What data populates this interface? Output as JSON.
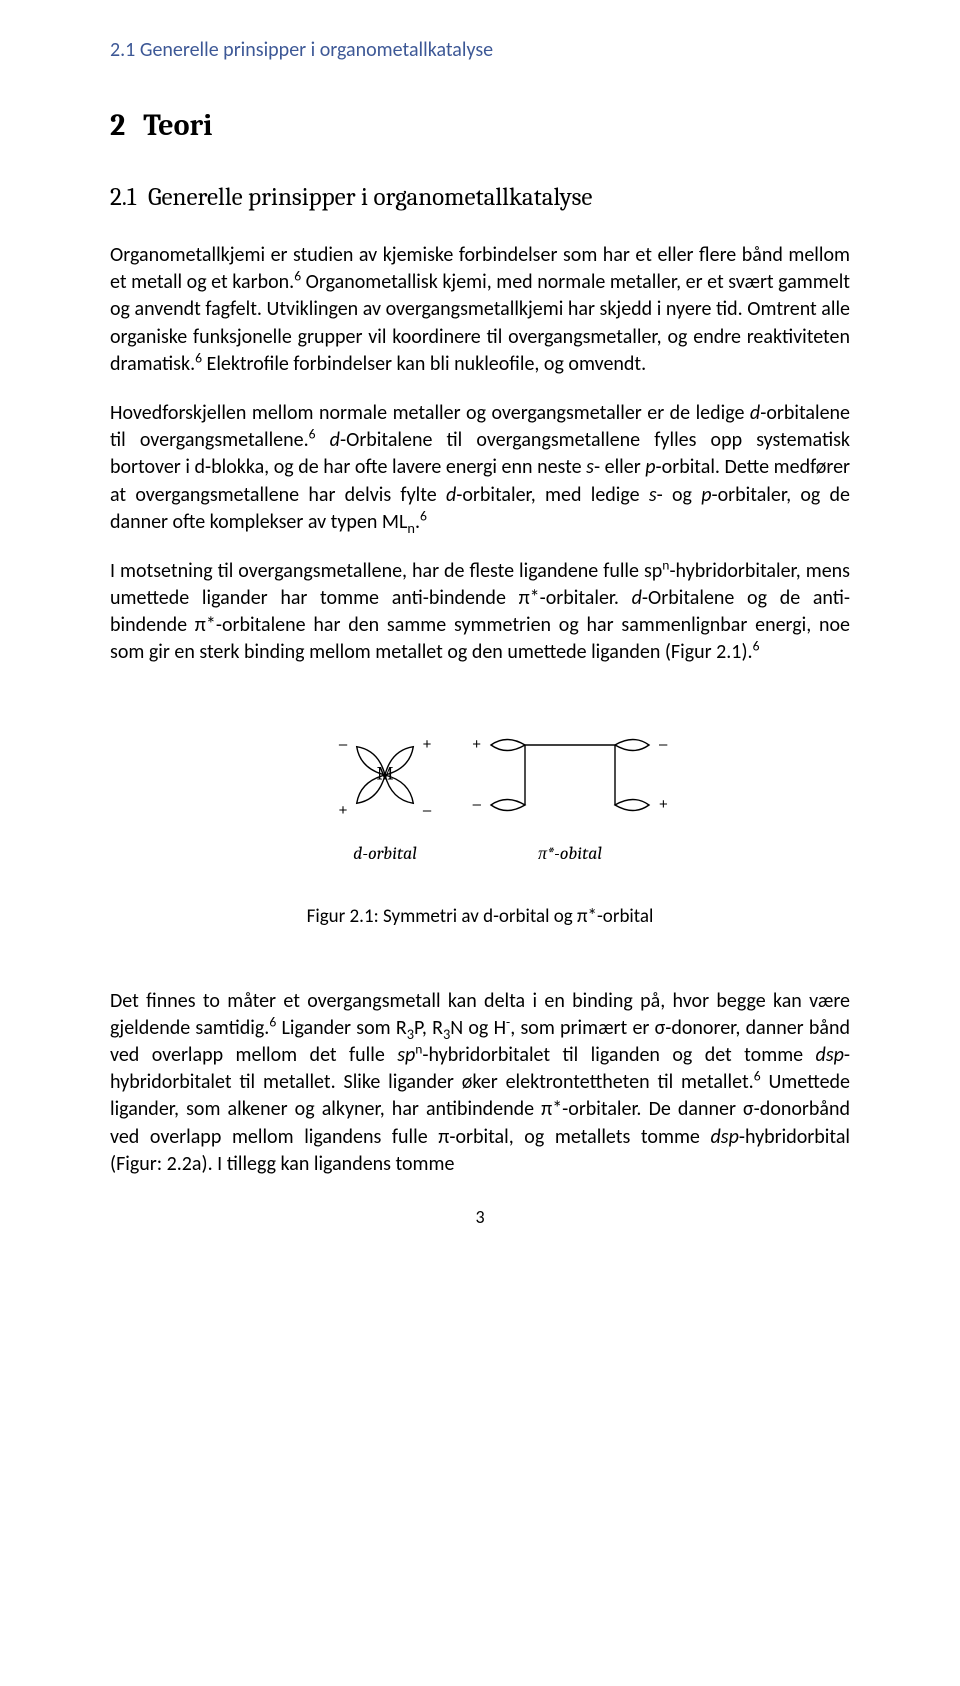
{
  "header": {
    "running_head": "2.1  Generelle prinsipper i organometallkatalyse"
  },
  "h1": {
    "number": "2",
    "title": "Teori"
  },
  "h2": {
    "number": "2.1",
    "title": "Generelle prinsipper i organometallkatalyse"
  },
  "paragraphs": {
    "p1": {
      "t1": "Organometallkjemi er studien av kjemiske forbindelser som har et eller flere bånd mellom et metall og et karbon.",
      "ref1": "6",
      "t2": " Organometallisk kjemi, med normale metaller, er et svært gammelt og anvendt fagfelt. Utviklingen av overgangsmetallkjemi har skjedd i nyere tid. Omtrent alle organiske funksjonelle grupper vil koordinere til overgangsmetaller, og endre reaktiviteten dramatisk.",
      "ref2": "6",
      "t3": " Elektrofile forbindelser kan bli nukleofile, og omvendt."
    },
    "p2": {
      "t1": "Hovedforskjellen mellom normale metaller og overgangsmetaller er de ledige ",
      "it1": "d",
      "t2": "-orbitalene til overgangsmetallene.",
      "ref1": "6",
      "t3": " ",
      "it2": "d",
      "t4": "-Orbitalene til overgangsmetallene fylles opp systematisk bortover i d-blokka, og de har ofte lavere energi enn neste ",
      "it3": "s",
      "t5": "- eller ",
      "it4": "p",
      "t6": "-orbital. Dette medfører at overgangsmetallene har delvis fylte ",
      "it5": "d",
      "t7": "-orbitaler, med ledige ",
      "it6": "s",
      "t8": "- og ",
      "it7": "p",
      "t9": "-orbitaler, og de danner ofte komplekser av typen ML",
      "subn1": "n",
      "t10": ".",
      "ref2": "6"
    },
    "p3": {
      "t1": "I motsetning til overgangsmetallene, har de fleste ligandene fulle sp",
      "supn1": "n",
      "t2": "-hybridorbitaler, mens umettede ligander har tomme anti-bindende π*-orbitaler. ",
      "it1": "d",
      "t3": "-Orbitalene og de anti-bindende π*-orbitalene har den samme symmetrien og har sammenlignbar energi, noe som gir en sterk binding mellom metallet og den umettede liganden (Figur 2.1).",
      "ref1": "6"
    },
    "p4": {
      "t1": "Det finnes to måter et overgangsmetall kan delta i en binding på, hvor begge kan være gjeldende samtidig.",
      "ref1": "6",
      "t2": " Ligander som R",
      "sub1": "3",
      "t3": "P, R",
      "sub2": "3",
      "t4": "N og H",
      "supm": "-",
      "t5": ", som primært er σ-donorer, danner bånd ved overlapp mellom det fulle ",
      "it1": "sp",
      "supn1": "n",
      "t6": "-hybridorbitalet til liganden og det tomme ",
      "it2": "dsp",
      "t7": "-hybridorbitalet til metallet. Slike ligander øker elektrontettheten til metallet.",
      "ref2": "6",
      "t8": " Umettede ligander, som alkener og alkyner, har  antibindende π*-orbitaler. De danner σ-donorbånd ved overlapp mellom ligandens fulle π-orbital, og metallets tomme ",
      "it3": "dsp",
      "t9": "-hybridorbital (Figur: 2.2a). I tillegg kan ligandens tomme"
    }
  },
  "figure": {
    "caption": "Figur 2.1: Symmetri av d-orbital og π*-orbital",
    "left_label": "d-orbital",
    "right_label": "π*-obital",
    "atom": "M",
    "signs": {
      "minus": "–",
      "plus": "+"
    },
    "style": {
      "stroke": "#000000",
      "fill": "#ffffff",
      "text_color": "#000000",
      "font_family": "Cambria, Georgia, serif",
      "label_font": "italic 18px Cambria, Georgia, serif",
      "sign_font": "15px Arial, sans-serif",
      "atom_font": "19px Cambria, Georgia, serif",
      "line_width": 1.4
    }
  },
  "page_number": "3"
}
